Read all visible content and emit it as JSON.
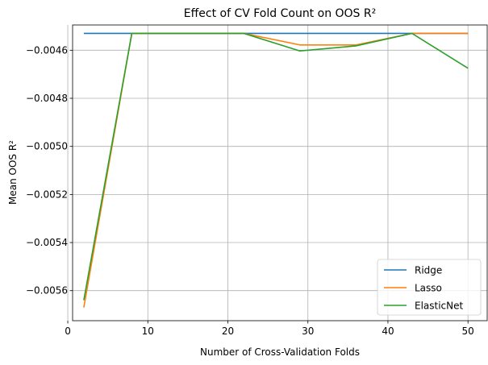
{
  "chart_data": {
    "type": "line",
    "title": "Effect of CV Fold Count on OOS R²",
    "xlabel": "Number of Cross-Validation Folds",
    "ylabel": "Mean OOS R²",
    "xlim": [
      0.6,
      52.4
    ],
    "ylim": [
      -0.005725,
      -0.004495
    ],
    "xticks": [
      0,
      10,
      20,
      30,
      40,
      50
    ],
    "yticks": [
      -0.0056,
      -0.0054,
      -0.0052,
      -0.005,
      -0.0048,
      -0.0046
    ],
    "grid": true,
    "legend_position": "lower right",
    "x": [
      2,
      8,
      15,
      22,
      29,
      36,
      43,
      50
    ],
    "series": [
      {
        "name": "Ridge",
        "color": "#1f77b4",
        "values": [
          -0.00453,
          -0.00453,
          -0.00453,
          -0.00453,
          -0.00453,
          -0.00453,
          -0.00453,
          -0.00453
        ]
      },
      {
        "name": "Lasso",
        "color": "#ff7f0e",
        "values": [
          -0.00567,
          -0.00453,
          -0.00453,
          -0.00453,
          -0.004578,
          -0.004578,
          -0.00453,
          -0.00453
        ]
      },
      {
        "name": "ElasticNet",
        "color": "#2ca02c",
        "values": [
          -0.00564,
          -0.00453,
          -0.00453,
          -0.00453,
          -0.004603,
          -0.004582,
          -0.00453,
          -0.004675
        ]
      }
    ]
  }
}
